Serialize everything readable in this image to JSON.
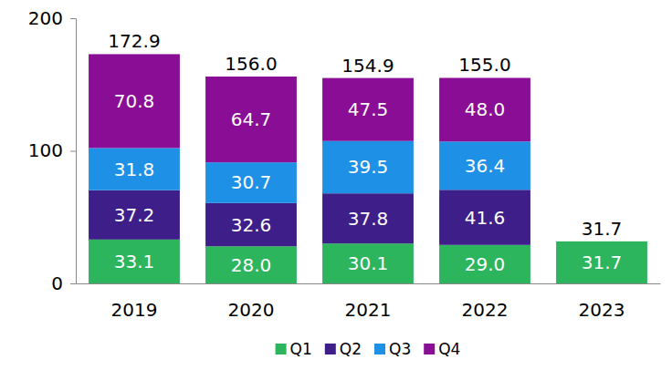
{
  "chart_data": {
    "type": "bar",
    "stacked": true,
    "data_labels": true,
    "legend": "bottom",
    "grid": false,
    "categories": [
      "2019",
      "2020",
      "2021",
      "2022",
      "2023"
    ],
    "series": [
      {
        "name": "Q1",
        "color": "#2db55d",
        "values": [
          33.1,
          28.0,
          30.1,
          29.0,
          31.7
        ],
        "value_labels": [
          "33.1",
          "28.0",
          "30.1",
          "29.0",
          "31.7"
        ]
      },
      {
        "name": "Q2",
        "color": "#3e1f8a",
        "values": [
          37.2,
          32.6,
          37.8,
          41.6,
          null
        ],
        "value_labels": [
          "37.2",
          "32.6",
          "37.8",
          "41.6",
          null
        ]
      },
      {
        "name": "Q3",
        "color": "#1e90e6",
        "values": [
          31.8,
          30.7,
          39.5,
          36.4,
          null
        ],
        "value_labels": [
          "31.8",
          "30.7",
          "39.5",
          "36.4",
          null
        ]
      },
      {
        "name": "Q4",
        "color": "#8a0d96",
        "values": [
          70.8,
          64.7,
          47.5,
          48.0,
          null
        ],
        "value_labels": [
          "70.8",
          "64.7",
          "47.5",
          "48.0",
          null
        ]
      }
    ],
    "totals": [
      172.9,
      156.0,
      154.9,
      155.0,
      31.7
    ],
    "totals_labels": [
      "172.9",
      "156.0",
      "154.9",
      "155.0",
      "31.7"
    ],
    "ylim": [
      0,
      200
    ],
    "yticks": [
      0,
      100,
      200
    ]
  }
}
